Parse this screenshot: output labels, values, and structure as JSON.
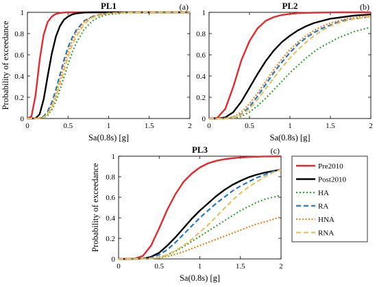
{
  "figure": {
    "xlabel": "Sa(0.8s) [g]",
    "ylabel": "Probability of exceedance"
  },
  "series_styles": [
    {
      "name": "Pre2010",
      "color": "#e8282b",
      "dash": "",
      "width": 2.4
    },
    {
      "name": "Post2010",
      "color": "#000000",
      "dash": "",
      "width": 2.4
    },
    {
      "name": "HA",
      "color": "#2ea62e",
      "dash": "2,3",
      "width": 2.2
    },
    {
      "name": "RA",
      "color": "#1f78c8",
      "dash": "7,4",
      "width": 2.2
    },
    {
      "name": "HNA",
      "color": "#f07f10",
      "dash": "2,2.5",
      "width": 2.2
    },
    {
      "name": "RNA",
      "color": "#e8c060",
      "dash": "7,4",
      "width": 2.2
    }
  ],
  "chart_data": [
    {
      "type": "line",
      "title": "PL1",
      "tag": "(a)",
      "xlabel": "Sa(0.8s) [g]",
      "ylabel": "Probability of exceedance",
      "xlim": [
        0,
        2
      ],
      "ylim": [
        0,
        1
      ],
      "xticks": [
        "0",
        "0.5",
        "1",
        "1.5",
        "2"
      ],
      "yticks": [
        "0",
        "0.2",
        "0.4",
        "0.6",
        "0.8",
        "1"
      ],
      "x": [
        0,
        0.05,
        0.1,
        0.15,
        0.2,
        0.25,
        0.3,
        0.35,
        0.4,
        0.45,
        0.5,
        0.55,
        0.6,
        0.7,
        0.8,
        0.9,
        1.0,
        1.2,
        1.4,
        1.6,
        1.8,
        2.0
      ],
      "series": [
        {
          "name": "Pre2010",
          "values": [
            0,
            0.02,
            0.22,
            0.55,
            0.79,
            0.91,
            0.96,
            0.985,
            0.994,
            0.998,
            1,
            1,
            1,
            1,
            1,
            1,
            1,
            1,
            1,
            1,
            1,
            1
          ]
        },
        {
          "name": "Post2010",
          "values": [
            0,
            0,
            0.002,
            0.04,
            0.18,
            0.4,
            0.61,
            0.77,
            0.87,
            0.93,
            0.96,
            0.98,
            0.99,
            0.998,
            1,
            1,
            1,
            1,
            1,
            1,
            1,
            1
          ]
        },
        {
          "name": "HA",
          "values": [
            0,
            0,
            0,
            0.002,
            0.01,
            0.03,
            0.08,
            0.16,
            0.27,
            0.39,
            0.51,
            0.62,
            0.71,
            0.84,
            0.92,
            0.96,
            0.98,
            0.995,
            1,
            1,
            1,
            1
          ]
        },
        {
          "name": "RA",
          "values": [
            0,
            0,
            0,
            0.004,
            0.02,
            0.07,
            0.15,
            0.27,
            0.41,
            0.55,
            0.67,
            0.76,
            0.83,
            0.92,
            0.96,
            0.98,
            0.99,
            0.998,
            1,
            1,
            1,
            1
          ]
        },
        {
          "name": "HNA",
          "values": [
            0,
            0,
            0,
            0.003,
            0.015,
            0.05,
            0.12,
            0.23,
            0.36,
            0.5,
            0.63,
            0.73,
            0.81,
            0.91,
            0.96,
            0.98,
            0.99,
            0.998,
            1,
            1,
            1,
            1
          ]
        },
        {
          "name": "RNA",
          "values": [
            0,
            0,
            0,
            0.002,
            0.012,
            0.04,
            0.1,
            0.2,
            0.32,
            0.45,
            0.58,
            0.69,
            0.77,
            0.89,
            0.95,
            0.975,
            0.99,
            0.997,
            1,
            1,
            1,
            1
          ]
        }
      ]
    },
    {
      "type": "line",
      "title": "PL2",
      "tag": "(b)",
      "xlabel": "Sa(0.8s) [g]",
      "ylabel": "",
      "xlim": [
        0,
        2
      ],
      "ylim": [
        0,
        1
      ],
      "xticks": [
        "0",
        "0.5",
        "1",
        "1.5",
        "2"
      ],
      "yticks": [
        "0",
        "0.2",
        "0.4",
        "0.6",
        "0.8",
        "1"
      ],
      "x": [
        0,
        0.1,
        0.2,
        0.3,
        0.4,
        0.5,
        0.6,
        0.7,
        0.8,
        0.9,
        1.0,
        1.1,
        1.2,
        1.3,
        1.4,
        1.5,
        1.6,
        1.7,
        1.8,
        1.9,
        2.0
      ],
      "series": [
        {
          "name": "Pre2010",
          "values": [
            0,
            0.005,
            0.09,
            0.3,
            0.55,
            0.73,
            0.85,
            0.92,
            0.955,
            0.975,
            0.985,
            0.992,
            0.995,
            0.997,
            0.998,
            0.999,
            1,
            1,
            1,
            1,
            1
          ]
        },
        {
          "name": "Post2010",
          "values": [
            0,
            0,
            0.01,
            0.06,
            0.16,
            0.29,
            0.42,
            0.54,
            0.64,
            0.72,
            0.78,
            0.83,
            0.87,
            0.9,
            0.92,
            0.94,
            0.95,
            0.96,
            0.97,
            0.975,
            0.98
          ]
        },
        {
          "name": "HA",
          "values": [
            0,
            0,
            0,
            0.005,
            0.02,
            0.06,
            0.12,
            0.19,
            0.27,
            0.35,
            0.43,
            0.5,
            0.57,
            0.63,
            0.68,
            0.72,
            0.76,
            0.79,
            0.82,
            0.84,
            0.86
          ]
        },
        {
          "name": "RA",
          "values": [
            0,
            0,
            0,
            0.01,
            0.04,
            0.11,
            0.21,
            0.32,
            0.43,
            0.53,
            0.62,
            0.7,
            0.76,
            0.81,
            0.85,
            0.88,
            0.91,
            0.93,
            0.94,
            0.95,
            0.96
          ]
        },
        {
          "name": "HNA",
          "values": [
            0,
            0,
            0.002,
            0.015,
            0.06,
            0.14,
            0.24,
            0.35,
            0.46,
            0.56,
            0.65,
            0.72,
            0.78,
            0.83,
            0.87,
            0.9,
            0.92,
            0.94,
            0.95,
            0.96,
            0.97
          ]
        },
        {
          "name": "RNA",
          "values": [
            0,
            0,
            0,
            0.008,
            0.035,
            0.09,
            0.18,
            0.28,
            0.38,
            0.48,
            0.57,
            0.65,
            0.72,
            0.78,
            0.83,
            0.87,
            0.9,
            0.92,
            0.94,
            0.95,
            0.96
          ]
        }
      ]
    },
    {
      "type": "line",
      "title": "PL3",
      "tag": "(c)",
      "xlabel": "Sa(0.8s) [g]",
      "ylabel": "Probability of exceedance",
      "xlim": [
        0,
        2
      ],
      "ylim": [
        0,
        1
      ],
      "xticks": [
        "0",
        "0.5",
        "1",
        "1.5",
        "2"
      ],
      "yticks": [
        "0",
        "0.2",
        "0.4",
        "0.6",
        "0.8",
        "1"
      ],
      "x": [
        0,
        0.1,
        0.2,
        0.3,
        0.4,
        0.5,
        0.6,
        0.7,
        0.8,
        0.9,
        1.0,
        1.1,
        1.2,
        1.3,
        1.4,
        1.5,
        1.6,
        1.7,
        1.8,
        1.9,
        2.0
      ],
      "series": [
        {
          "name": "Pre2010",
          "values": [
            0,
            0,
            0.003,
            0.03,
            0.13,
            0.3,
            0.48,
            0.63,
            0.75,
            0.83,
            0.89,
            0.93,
            0.955,
            0.97,
            0.98,
            0.987,
            0.992,
            0.995,
            0.997,
            0.998,
            0.999
          ]
        },
        {
          "name": "Post2010",
          "values": [
            0,
            0,
            0,
            0.003,
            0.02,
            0.06,
            0.13,
            0.21,
            0.3,
            0.39,
            0.47,
            0.54,
            0.61,
            0.67,
            0.72,
            0.76,
            0.795,
            0.82,
            0.84,
            0.855,
            0.87
          ]
        },
        {
          "name": "HA",
          "values": [
            0,
            0,
            0,
            0,
            0.004,
            0.015,
            0.04,
            0.075,
            0.12,
            0.17,
            0.22,
            0.27,
            0.32,
            0.37,
            0.42,
            0.47,
            0.51,
            0.55,
            0.58,
            0.6,
            0.62
          ]
        },
        {
          "name": "RA",
          "values": [
            0,
            0,
            0,
            0.002,
            0.012,
            0.04,
            0.09,
            0.16,
            0.24,
            0.32,
            0.4,
            0.47,
            0.54,
            0.6,
            0.66,
            0.71,
            0.75,
            0.79,
            0.82,
            0.85,
            0.87
          ]
        },
        {
          "name": "HNA",
          "values": [
            0,
            0,
            0,
            0,
            0.003,
            0.01,
            0.025,
            0.045,
            0.07,
            0.1,
            0.13,
            0.16,
            0.19,
            0.22,
            0.25,
            0.28,
            0.31,
            0.34,
            0.36,
            0.385,
            0.41
          ]
        },
        {
          "name": "RNA",
          "values": [
            0,
            0,
            0,
            0,
            0.004,
            0.015,
            0.04,
            0.08,
            0.13,
            0.19,
            0.26,
            0.33,
            0.41,
            0.49,
            0.57,
            0.64,
            0.7,
            0.75,
            0.8,
            0.84,
            0.87
          ]
        }
      ]
    }
  ]
}
